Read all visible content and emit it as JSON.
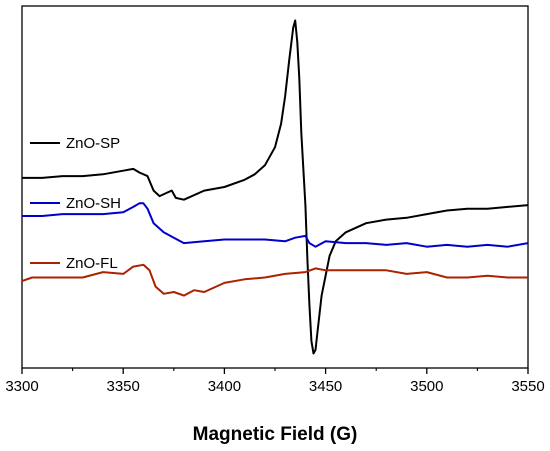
{
  "chart_data": {
    "type": "line",
    "title": "",
    "xlabel": "Magnetic Field (G)",
    "ylabel": "",
    "xlim": [
      3300,
      3550
    ],
    "ylim": [
      -1,
      1
    ],
    "x_ticks": [
      3300,
      3350,
      3400,
      3450,
      3500,
      3550
    ],
    "x_tick_labels": [
      "3300",
      "3350",
      "3400",
      "3450",
      "3500",
      "3550"
    ],
    "grid": false,
    "legend_position": "left",
    "series": [
      {
        "name": "ZnO-SP",
        "color": "#000000",
        "x": [
          3300,
          3310,
          3320,
          3330,
          3340,
          3350,
          3355,
          3358,
          3362,
          3365,
          3368,
          3372,
          3374,
          3376,
          3380,
          3390,
          3400,
          3410,
          3415,
          3420,
          3425,
          3428,
          3430,
          3432,
          3434,
          3435,
          3436,
          3437,
          3438,
          3440,
          3441,
          3442,
          3443,
          3444,
          3445,
          3446,
          3448,
          3452,
          3455,
          3460,
          3470,
          3480,
          3490,
          3500,
          3510,
          3520,
          3530,
          3540,
          3550
        ],
        "y": [
          0.05,
          0.05,
          0.06,
          0.06,
          0.07,
          0.09,
          0.1,
          0.08,
          0.06,
          -0.02,
          -0.05,
          -0.03,
          -0.02,
          -0.06,
          -0.07,
          -0.02,
          0.0,
          0.04,
          0.07,
          0.12,
          0.22,
          0.35,
          0.5,
          0.7,
          0.88,
          0.92,
          0.8,
          0.6,
          0.3,
          -0.1,
          -0.4,
          -0.65,
          -0.85,
          -0.92,
          -0.9,
          -0.8,
          -0.6,
          -0.38,
          -0.3,
          -0.25,
          -0.2,
          -0.18,
          -0.17,
          -0.15,
          -0.13,
          -0.12,
          -0.12,
          -0.11,
          -0.1
        ]
      },
      {
        "name": "ZnO-SH",
        "color": "#0000cc",
        "x": [
          3300,
          3310,
          3320,
          3330,
          3340,
          3350,
          3355,
          3358,
          3360,
          3362,
          3365,
          3370,
          3375,
          3380,
          3390,
          3400,
          3410,
          3420,
          3430,
          3435,
          3440,
          3442,
          3445,
          3450,
          3460,
          3470,
          3480,
          3490,
          3500,
          3510,
          3520,
          3530,
          3540,
          3550
        ],
        "y": [
          -0.16,
          -0.16,
          -0.15,
          -0.15,
          -0.15,
          -0.14,
          -0.11,
          -0.09,
          -0.09,
          -0.12,
          -0.2,
          -0.25,
          -0.28,
          -0.31,
          -0.3,
          -0.29,
          -0.29,
          -0.29,
          -0.3,
          -0.28,
          -0.27,
          -0.31,
          -0.33,
          -0.3,
          -0.31,
          -0.31,
          -0.32,
          -0.31,
          -0.33,
          -0.32,
          -0.33,
          -0.32,
          -0.33,
          -0.31
        ]
      },
      {
        "name": "ZnO-FL",
        "color": "#aa2200",
        "x": [
          3300,
          3305,
          3310,
          3320,
          3330,
          3340,
          3350,
          3355,
          3360,
          3363,
          3366,
          3370,
          3375,
          3380,
          3385,
          3390,
          3400,
          3410,
          3420,
          3430,
          3440,
          3445,
          3450,
          3460,
          3470,
          3480,
          3490,
          3500,
          3510,
          3520,
          3530,
          3540,
          3550
        ],
        "y": [
          -0.52,
          -0.5,
          -0.5,
          -0.5,
          -0.5,
          -0.47,
          -0.48,
          -0.44,
          -0.43,
          -0.46,
          -0.55,
          -0.59,
          -0.58,
          -0.6,
          -0.57,
          -0.58,
          -0.53,
          -0.51,
          -0.5,
          -0.48,
          -0.47,
          -0.45,
          -0.46,
          -0.46,
          -0.46,
          -0.46,
          -0.48,
          -0.47,
          -0.5,
          -0.5,
          -0.49,
          -0.5,
          -0.5
        ]
      }
    ]
  }
}
